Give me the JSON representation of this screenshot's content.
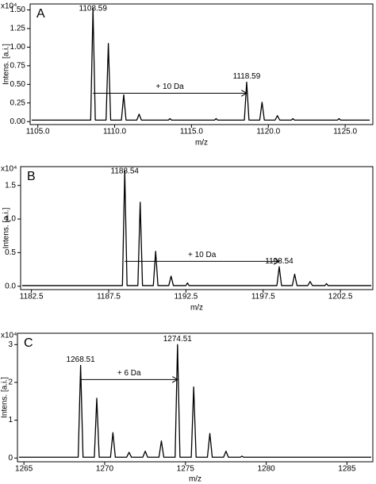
{
  "chart_data": [
    {
      "type": "line",
      "title": "A",
      "y_multiplier": "x10⁴",
      "ylabel": "Intens. [a.i.]",
      "xlabel": "m/z",
      "color": "#000000",
      "xlim": [
        1104.5,
        1126.8
      ],
      "ylim": [
        -0.04,
        1.58
      ],
      "xticks": [
        {
          "value": 1105,
          "label": "1105.0"
        },
        {
          "value": 1110,
          "label": "1110.0"
        },
        {
          "value": 1115,
          "label": "1115.0"
        },
        {
          "value": 1120,
          "label": "1120.0"
        },
        {
          "value": 1125,
          "label": "1125.0"
        }
      ],
      "yticks": [
        {
          "value": 0,
          "label": "0.00"
        },
        0.25,
        {
          "value": 0.5,
          "label": "0.50"
        },
        0.75,
        {
          "value": 1,
          "label": "1.00"
        },
        1.25,
        {
          "value": 1.5,
          "label": "1.50"
        }
      ],
      "x": [
        1104.6,
        1108.44,
        1108.59,
        1108.74,
        1109.44,
        1109.59,
        1109.74,
        1110.44,
        1110.59,
        1110.74,
        1111.44,
        1111.59,
        1111.74,
        1113.5,
        1113.6,
        1113.7,
        1116.5,
        1116.6,
        1116.7,
        1118.44,
        1118.59,
        1118.74,
        1119.44,
        1119.59,
        1119.74,
        1120.44,
        1120.59,
        1120.74,
        1121.5,
        1121.6,
        1121.7,
        1124.5,
        1124.6,
        1124.7,
        1126.6
      ],
      "values": [
        0.02,
        0.02,
        1.52,
        0.02,
        0.02,
        1.05,
        0.02,
        0.02,
        0.36,
        0.02,
        0.02,
        0.1,
        0.02,
        0.02,
        0.04,
        0.02,
        0.02,
        0.04,
        0.02,
        0.02,
        0.53,
        0.02,
        0.02,
        0.26,
        0.02,
        0.02,
        0.08,
        0.02,
        0.02,
        0.04,
        0.02,
        0.02,
        0.04,
        0.02,
        0.02
      ],
      "peak_labels": [
        {
          "value": 1108.59,
          "label": "1108.59"
        },
        {
          "value": 1118.59,
          "label": "1118.59"
        }
      ],
      "shift_label": "+ 10  Da"
    },
    {
      "type": "line",
      "title": "B",
      "y_multiplier": "x10⁴",
      "ylabel": "Intens. [a.i.]",
      "xlabel": "m/z",
      "color": "#000000",
      "xlim": [
        1181.8,
        1204.6
      ],
      "ylim": [
        -0.05,
        1.78
      ],
      "xticks": [
        1182.5,
        1187.5,
        1192.5,
        1197.5,
        1202.5
      ],
      "yticks": [
        {
          "value": 0,
          "label": "0.0"
        },
        0.5,
        {
          "value": 1,
          "label": "1.0"
        },
        1.5
      ],
      "x": [
        1181.9,
        1188.39,
        1188.54,
        1188.69,
        1189.39,
        1189.54,
        1189.69,
        1190.39,
        1190.54,
        1190.69,
        1191.39,
        1191.54,
        1191.69,
        1192.5,
        1192.6,
        1192.7,
        1198.39,
        1198.54,
        1198.69,
        1199.39,
        1199.54,
        1199.69,
        1200.39,
        1200.54,
        1200.69,
        1201.5,
        1201.6,
        1201.7,
        1204.5
      ],
      "values": [
        0.01,
        0.01,
        1.72,
        0.01,
        0.01,
        1.25,
        0.01,
        0.01,
        0.52,
        0.01,
        0.01,
        0.15,
        0.01,
        0.01,
        0.05,
        0.01,
        0.01,
        0.29,
        0.01,
        0.01,
        0.18,
        0.01,
        0.01,
        0.07,
        0.01,
        0.01,
        0.04,
        0.01,
        0.01
      ],
      "peak_labels": [
        {
          "value": 1188.54,
          "label": "1188.54"
        },
        {
          "value": 1198.54,
          "label": "1198.54"
        }
      ],
      "shift_label": "+ 10  Da"
    },
    {
      "type": "line",
      "title": "C",
      "y_multiplier": "x10⁴",
      "ylabel": "Intens. [a.i.]",
      "xlabel": "m/z",
      "color": "#000000",
      "xlim": [
        1264.6,
        1286.6
      ],
      "ylim": [
        -0.1,
        3.3
      ],
      "xticks": [
        1265,
        1270,
        1275,
        1280,
        1285
      ],
      "yticks": [
        0,
        1,
        2,
        3
      ],
      "x": [
        1264.7,
        1268.36,
        1268.51,
        1268.66,
        1269.36,
        1269.51,
        1269.66,
        1270.36,
        1270.51,
        1270.66,
        1271.36,
        1271.51,
        1271.66,
        1272.36,
        1272.51,
        1272.66,
        1273.36,
        1273.51,
        1273.66,
        1274.36,
        1274.51,
        1274.66,
        1275.36,
        1275.51,
        1275.66,
        1276.36,
        1276.51,
        1276.66,
        1277.36,
        1277.51,
        1277.66,
        1278.4,
        1278.5,
        1278.6,
        1286.5
      ],
      "values": [
        0.02,
        0.02,
        2.45,
        0.02,
        0.02,
        1.58,
        0.02,
        0.02,
        0.67,
        0.02,
        0.02,
        0.15,
        0.02,
        0.02,
        0.18,
        0.02,
        0.02,
        0.45,
        0.02,
        0.02,
        3.0,
        0.02,
        0.02,
        1.88,
        0.02,
        0.02,
        0.65,
        0.02,
        0.02,
        0.18,
        0.02,
        0.02,
        0.05,
        0.02,
        0.02
      ],
      "peak_labels": [
        {
          "value": 1268.51,
          "label": "1268.51"
        },
        {
          "value": 1274.51,
          "label": "1274.51"
        }
      ],
      "shift_label": "+ 6 Da"
    }
  ]
}
